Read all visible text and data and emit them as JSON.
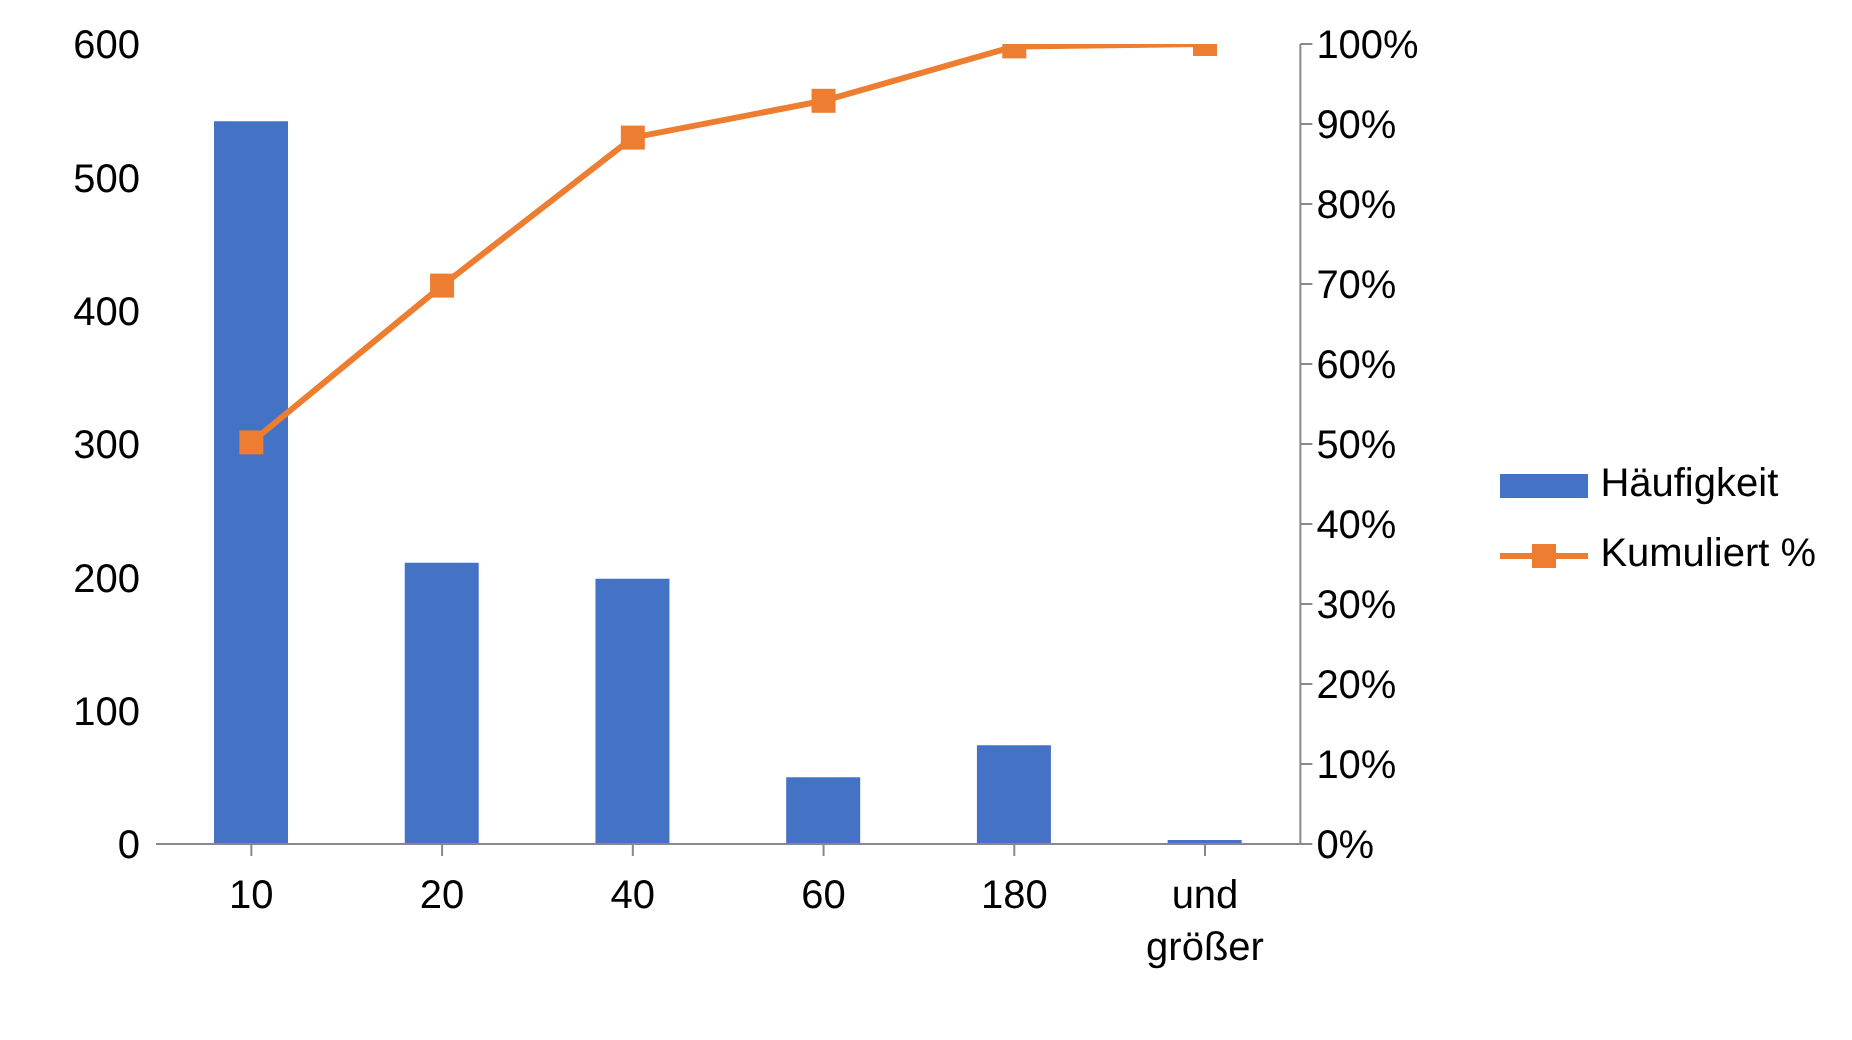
{
  "chart_data": {
    "type": "bar",
    "categories": [
      "10",
      "20",
      "40",
      "60",
      "180",
      "und größer"
    ],
    "series": [
      {
        "name": "Häufigkeit",
        "color": "#4472c4",
        "values": [
          542,
          211,
          199,
          50,
          74,
          3
        ]
      },
      {
        "name": "Kumuliert %",
        "type": "line",
        "axis": "y2",
        "color": "#ed7d31",
        "marker": "square",
        "values": [
          50.2,
          69.8,
          88.3,
          92.9,
          99.7,
          100
        ]
      }
    ],
    "ylim": [
      0,
      600
    ],
    "yticks": [
      0,
      100,
      200,
      300,
      400,
      500,
      600
    ],
    "y2lim": [
      0,
      100
    ],
    "y2ticks": [
      {
        "value": 0,
        "label": "0%"
      },
      {
        "value": 10,
        "label": "10%"
      },
      {
        "value": 20,
        "label": "20%"
      },
      {
        "value": 30,
        "label": "30%"
      },
      {
        "value": 40,
        "label": "40%"
      },
      {
        "value": 50,
        "label": "50%"
      },
      {
        "value": 60,
        "label": "60%"
      },
      {
        "value": 70,
        "label": "70%"
      },
      {
        "value": 80,
        "label": "80%"
      },
      {
        "value": 90,
        "label": "90%"
      },
      {
        "value": 100,
        "label": "100%"
      }
    ],
    "grid": false,
    "legend": "right"
  }
}
